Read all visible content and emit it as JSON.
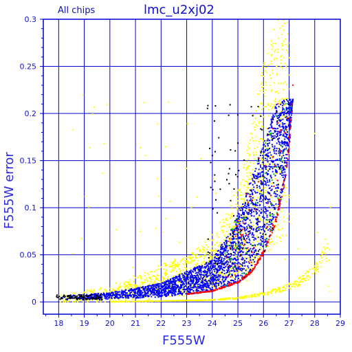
{
  "chart_data": {
    "type": "scatter",
    "title": "lmc_u2xj02",
    "subtitle": "All chips",
    "xlabel": "F555W",
    "ylabel": "F555W error",
    "xlim": [
      17.4,
      29.0
    ],
    "ylim": [
      -0.013,
      0.3
    ],
    "x_ticks": [
      18,
      19,
      20,
      21,
      22,
      23,
      24,
      25,
      26,
      27,
      28,
      29
    ],
    "y_ticks": [
      0,
      0.05,
      0.1,
      0.15,
      0.2,
      0.25,
      0.3
    ],
    "x_tick_labels": [
      "18",
      "19",
      "20",
      "21",
      "22",
      "23",
      "24",
      "25",
      "26",
      "27",
      "28",
      "29"
    ],
    "y_tick_labels": [
      "0",
      "0.05",
      "0.1",
      "0.15",
      "0.2",
      "0.25",
      "0.3"
    ],
    "grid": true,
    "colors": {
      "axis": "#0000cc",
      "grid": "#0000cc",
      "text": "#1010cc",
      "yellow": "#ffff00",
      "blue": "#0000ff",
      "red": "#ff0000",
      "green": "#00cc00",
      "black": "#000000"
    },
    "series": [
      {
        "color": "#ffff00",
        "description_points": [
          {
            "x": 18.0,
            "y": 0.004
          },
          {
            "x": 19.0,
            "y": 0.006
          },
          {
            "x": 20.0,
            "y": 0.01
          },
          {
            "x": 21.0,
            "y": 0.016
          },
          {
            "x": 22.0,
            "y": 0.024
          },
          {
            "x": 23.0,
            "y": 0.033
          },
          {
            "x": 24.0,
            "y": 0.045
          },
          {
            "x": 24.5,
            "y": 0.06
          },
          {
            "x": 25.0,
            "y": 0.08
          },
          {
            "x": 25.5,
            "y": 0.12
          },
          {
            "x": 26.0,
            "y": 0.17
          },
          {
            "x": 26.5,
            "y": 0.2
          },
          {
            "x": 27.0,
            "y": 0.215
          }
        ],
        "lower_sequence": [
          {
            "x": 20.0,
            "y": 0.0
          },
          {
            "x": 22.0,
            "y": 0.001
          },
          {
            "x": 24.0,
            "y": 0.002
          },
          {
            "x": 25.0,
            "y": 0.004
          },
          {
            "x": 26.0,
            "y": 0.008
          },
          {
            "x": 27.0,
            "y": 0.016
          },
          {
            "x": 27.5,
            "y": 0.022
          },
          {
            "x": 28.0,
            "y": 0.035
          },
          {
            "x": 28.6,
            "y": 0.055
          }
        ]
      },
      {
        "color": "#0000ff",
        "lower_envelope": [
          {
            "x": 18.0,
            "y": 0.002
          },
          {
            "x": 20.0,
            "y": 0.003
          },
          {
            "x": 22.0,
            "y": 0.005
          },
          {
            "x": 24.0,
            "y": 0.011
          },
          {
            "x": 25.0,
            "y": 0.02
          },
          {
            "x": 25.5,
            "y": 0.03
          },
          {
            "x": 26.0,
            "y": 0.05
          },
          {
            "x": 26.5,
            "y": 0.085
          },
          {
            "x": 26.8,
            "y": 0.12
          },
          {
            "x": 27.0,
            "y": 0.16
          },
          {
            "x": 27.15,
            "y": 0.215
          }
        ],
        "upper_envelope": [
          {
            "x": 18.0,
            "y": 0.006
          },
          {
            "x": 20.0,
            "y": 0.01
          },
          {
            "x": 22.0,
            "y": 0.02
          },
          {
            "x": 24.0,
            "y": 0.045
          },
          {
            "x": 24.8,
            "y": 0.08
          },
          {
            "x": 25.5,
            "y": 0.13
          },
          {
            "x": 26.0,
            "y": 0.17
          },
          {
            "x": 26.5,
            "y": 0.21
          },
          {
            "x": 26.8,
            "y": 0.215
          }
        ]
      },
      {
        "color": "#ff0000"
      },
      {
        "color": "#00cc00"
      },
      {
        "color": "#000000"
      }
    ]
  }
}
